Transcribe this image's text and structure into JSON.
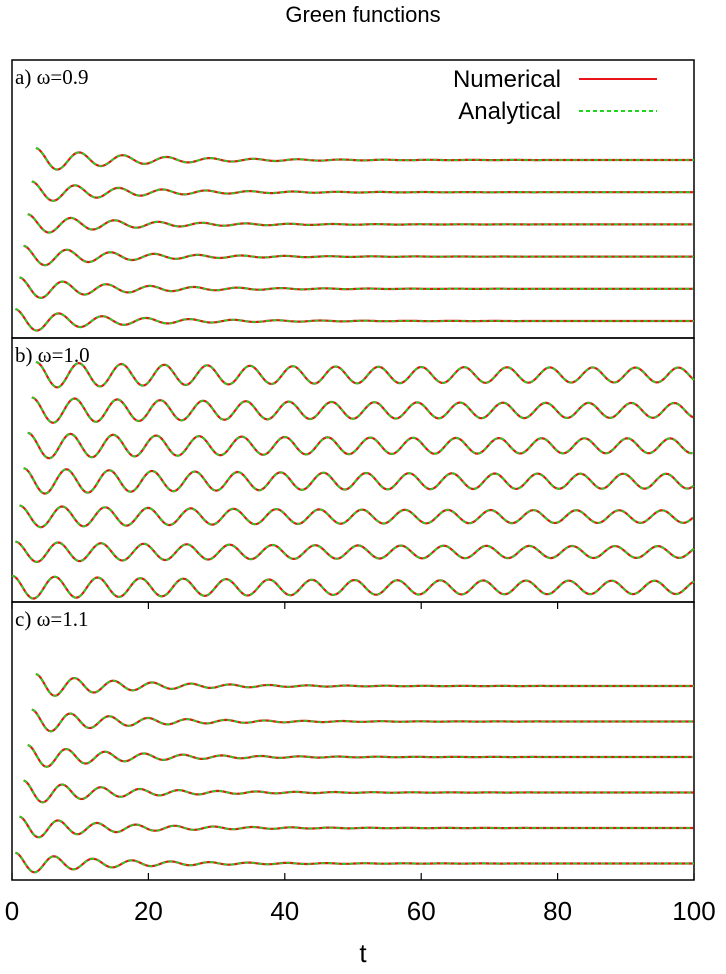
{
  "title": "Green functions",
  "xlabel": "t",
  "legend": {
    "numerical_label": "Numerical",
    "analytical_label": "Analytical",
    "numerical_color": "#e8141a",
    "analytical_color": "#1ed41e"
  },
  "chart_data": [
    {
      "type": "line",
      "panel_label": "a) ω=0.9",
      "omega": 0.9,
      "xlim": [
        0,
        100
      ],
      "y_ticks_shown": false,
      "legend_placement": "top-right",
      "stacked_curves": 6,
      "oscillation_period": 6.4,
      "amplitude_relative": [
        1.0,
        0.9,
        0.85,
        0.9,
        0.95,
        1.0
      ],
      "amplitude_envelope": "decaying to near zero by t≈60",
      "series": [
        {
          "name": "Numerical"
        },
        {
          "name": "Analytical"
        }
      ]
    },
    {
      "type": "line",
      "panel_label": "b) ω=1.0",
      "omega": 1.0,
      "xlim": [
        0,
        100
      ],
      "y_ticks_shown": false,
      "stacked_curves": 7,
      "oscillation_period": 6.28,
      "amplitude_relative": [
        1.0,
        1.0,
        1.0,
        1.0,
        0.85,
        0.8,
        0.9
      ],
      "amplitude_envelope": "sustained oscillation, slow partial decay",
      "series": [
        {
          "name": "Numerical"
        },
        {
          "name": "Analytical"
        }
      ]
    },
    {
      "type": "line",
      "panel_label": "c) ω=1.1",
      "omega": 1.1,
      "xlim": [
        0,
        100
      ],
      "x_ticks": [
        0,
        20,
        40,
        60,
        80,
        100
      ],
      "y_ticks_shown": false,
      "stacked_curves": 6,
      "oscillation_period": 5.7,
      "amplitude_relative": [
        1.0,
        1.0,
        1.0,
        1.0,
        0.95,
        0.9
      ],
      "amplitude_envelope": "decaying to near zero by t≈50",
      "series": [
        {
          "name": "Numerical"
        },
        {
          "name": "Analytical"
        }
      ]
    }
  ]
}
